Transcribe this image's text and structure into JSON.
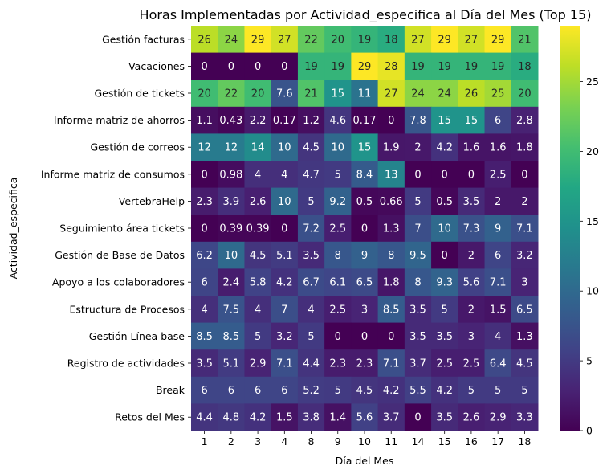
{
  "chart_data": {
    "type": "heatmap",
    "title": "Horas Implementadas por Actividad_especifica al Día del Mes (Top 15)",
    "xlabel": "Día del Mes",
    "ylabel": "Actividad_especifica",
    "x": [
      "1",
      "2",
      "3",
      "4",
      "8",
      "9",
      "10",
      "11",
      "14",
      "15",
      "16",
      "17",
      "18"
    ],
    "y": [
      "Gestión facturas",
      "Vacaciones",
      "Gestión de tickets",
      "Informe matriz de ahorros",
      "Gestión de correos",
      "Informe matriz de consumos",
      "VertebraHelp",
      "Seguimiento área tickets",
      "Gestión de Base de Datos",
      "Apoyo a los colaboradores",
      "Estructura de Procesos",
      "Gestión Línea base",
      "Registro de actividades",
      "Break",
      "Retos del Mes"
    ],
    "values": [
      [
        26,
        24,
        29,
        27,
        22,
        20,
        19,
        18,
        27,
        29,
        27,
        29,
        21
      ],
      [
        0,
        0,
        0,
        0,
        19,
        19,
        29,
        28,
        19,
        19,
        19,
        19,
        18
      ],
      [
        20,
        22,
        20,
        7.6,
        21,
        15,
        11,
        27,
        24,
        24,
        26,
        25,
        20
      ],
      [
        1.1,
        0.43,
        2.2,
        0.17,
        1.2,
        4.6,
        0.17,
        0,
        7.8,
        15,
        15,
        6,
        2.8
      ],
      [
        12,
        12,
        14,
        10,
        4.5,
        10,
        15,
        1.9,
        2,
        4.2,
        1.6,
        1.6,
        1.8
      ],
      [
        0,
        0.98,
        4,
        4,
        4.7,
        5,
        8.4,
        13,
        0,
        0,
        0,
        2.5,
        0
      ],
      [
        2.3,
        3.9,
        2.6,
        10,
        5,
        9.2,
        0.5,
        0.66,
        5,
        0.5,
        3.5,
        2,
        2
      ],
      [
        0,
        0.39,
        0.39,
        0,
        7.2,
        2.5,
        0,
        1.3,
        7,
        10,
        7.3,
        9,
        7.1
      ],
      [
        6.2,
        10,
        4.5,
        5.1,
        3.5,
        8,
        9,
        8,
        9.5,
        0,
        2,
        6,
        3.2
      ],
      [
        6,
        2.4,
        5.8,
        4.2,
        6.7,
        6.1,
        6.5,
        1.8,
        8,
        9.3,
        5.6,
        7.1,
        3
      ],
      [
        4,
        7.5,
        4,
        7,
        4,
        2.5,
        3,
        8.5,
        3.5,
        5,
        2,
        1.5,
        6.5
      ],
      [
        8.5,
        8.5,
        5,
        3.2,
        5,
        0,
        0,
        0,
        3.5,
        3.5,
        3,
        4,
        1.3
      ],
      [
        3.5,
        5.1,
        2.9,
        7.1,
        4.4,
        2.3,
        2.3,
        7.1,
        3.7,
        2.5,
        2.5,
        6.4,
        4.5
      ],
      [
        6,
        6,
        6,
        6,
        5.2,
        5,
        4.5,
        4.2,
        5.5,
        4.2,
        5,
        5,
        5
      ],
      [
        4.4,
        4.8,
        4.2,
        1.5,
        3.8,
        1.4,
        5.6,
        3.7,
        0,
        3.5,
        2.6,
        2.9,
        3.3
      ]
    ],
    "colormap": "viridis",
    "vmin": 0,
    "vmax": 29,
    "colorbar_ticks": [
      "0",
      "5",
      "10",
      "15",
      "20",
      "25"
    ],
    "grid": false,
    "annotations": true
  }
}
